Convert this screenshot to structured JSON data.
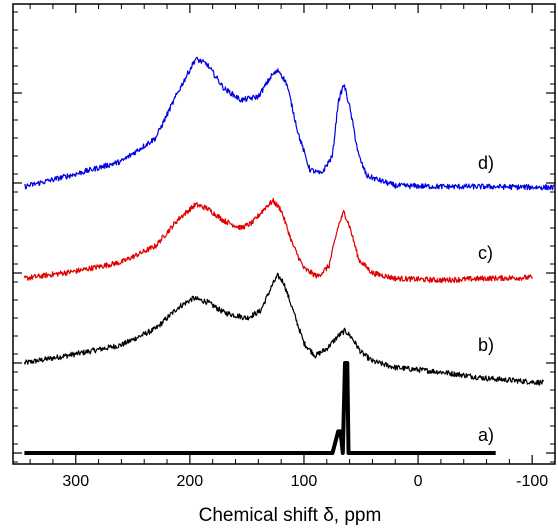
{
  "chart_data": {
    "type": "line",
    "xlabel": "Chemical shift δ, ppm",
    "ylabel": "",
    "xlim": [
      355,
      -120
    ],
    "x_reversed": true,
    "x_ticks": [
      300,
      200,
      100,
      0,
      -100
    ],
    "x_tick_labels": [
      "300",
      "200",
      "100",
      "0",
      "-100"
    ],
    "y_ticks": [
      0,
      1,
      2,
      3,
      4
    ],
    "y_labels_shown": false,
    "grid": false,
    "series": [
      {
        "name": "a)",
        "color": "#000000",
        "offset": 0,
        "x_range": [
          345,
          -68
        ],
        "noise": 0,
        "points": [
          [
            345,
            0
          ],
          [
            75,
            0
          ],
          [
            70,
            0.24
          ],
          [
            68,
            0.24
          ],
          [
            66,
            0
          ],
          [
            64,
            1.0
          ],
          [
            62,
            1.0
          ],
          [
            61,
            0
          ],
          [
            -68,
            0
          ]
        ]
      },
      {
        "name": "b)",
        "color": "#000000",
        "offset": 1,
        "x_range": [
          345,
          -110
        ],
        "noise": 0.03,
        "points": [
          [
            345,
            0
          ],
          [
            300,
            0.1
          ],
          [
            260,
            0.2
          ],
          [
            230,
            0.38
          ],
          [
            210,
            0.62
          ],
          [
            197,
            0.72
          ],
          [
            185,
            0.68
          ],
          [
            170,
            0.56
          ],
          [
            150,
            0.5
          ],
          [
            138,
            0.58
          ],
          [
            128,
            0.86
          ],
          [
            123,
            0.97
          ],
          [
            118,
            0.9
          ],
          [
            110,
            0.6
          ],
          [
            100,
            0.22
          ],
          [
            90,
            0.08
          ],
          [
            80,
            0.16
          ],
          [
            70,
            0.3
          ],
          [
            64,
            0.36
          ],
          [
            58,
            0.28
          ],
          [
            50,
            0.12
          ],
          [
            40,
            0.02
          ],
          [
            20,
            -0.05
          ],
          [
            -20,
            -0.1
          ],
          [
            -60,
            -0.17
          ],
          [
            -110,
            -0.22
          ]
        ]
      },
      {
        "name": "c)",
        "color": "#e00000",
        "offset": 2,
        "x_range": [
          345,
          -100
        ],
        "noise": 0.03,
        "points": [
          [
            345,
            -0.06
          ],
          [
            300,
            0.02
          ],
          [
            260,
            0.12
          ],
          [
            230,
            0.3
          ],
          [
            210,
            0.6
          ],
          [
            195,
            0.76
          ],
          [
            185,
            0.72
          ],
          [
            170,
            0.58
          ],
          [
            155,
            0.5
          ],
          [
            145,
            0.56
          ],
          [
            133,
            0.74
          ],
          [
            127,
            0.8
          ],
          [
            120,
            0.7
          ],
          [
            110,
            0.32
          ],
          [
            100,
            0.05
          ],
          [
            88,
            -0.04
          ],
          [
            78,
            0.08
          ],
          [
            70,
            0.52
          ],
          [
            65,
            0.68
          ],
          [
            60,
            0.52
          ],
          [
            52,
            0.15
          ],
          [
            40,
            0.0
          ],
          [
            20,
            -0.06
          ],
          [
            -20,
            -0.08
          ],
          [
            -60,
            -0.06
          ],
          [
            -100,
            -0.05
          ]
        ]
      },
      {
        "name": "d)",
        "color": "#0000e0",
        "offset": 3,
        "x_range": [
          345,
          -120
        ],
        "noise": 0.03,
        "points": [
          [
            345,
            -0.04
          ],
          [
            300,
            0.1
          ],
          [
            260,
            0.24
          ],
          [
            230,
            0.5
          ],
          [
            210,
            1.02
          ],
          [
            195,
            1.38
          ],
          [
            185,
            1.32
          ],
          [
            170,
            1.05
          ],
          [
            155,
            0.92
          ],
          [
            140,
            0.96
          ],
          [
            128,
            1.2
          ],
          [
            122,
            1.25
          ],
          [
            115,
            1.1
          ],
          [
            105,
            0.55
          ],
          [
            95,
            0.15
          ],
          [
            85,
            0.1
          ],
          [
            75,
            0.3
          ],
          [
            70,
            0.9
          ],
          [
            65,
            1.1
          ],
          [
            60,
            0.85
          ],
          [
            52,
            0.3
          ],
          [
            45,
            0.08
          ],
          [
            20,
            -0.03
          ],
          [
            -20,
            -0.04
          ],
          [
            -60,
            -0.04
          ],
          [
            -120,
            -0.05
          ]
        ]
      }
    ]
  }
}
